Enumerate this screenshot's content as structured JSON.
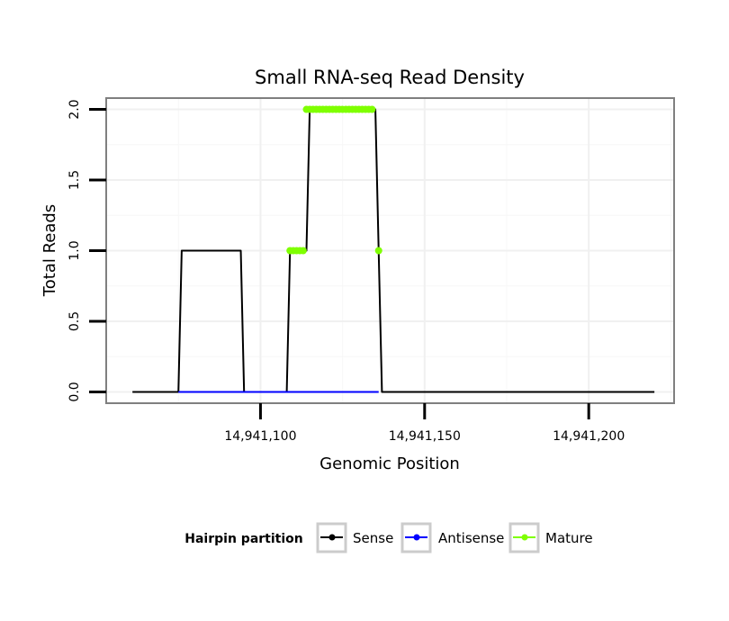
{
  "chart_data": {
    "type": "line",
    "title": "Small RNA-seq Read Density",
    "xlabel": "Genomic Position",
    "ylabel": "Total Reads",
    "xlim": [
      14941053,
      14941226
    ],
    "ylim": [
      -0.08,
      2.08
    ],
    "x_ticks": [
      14941100,
      14941150,
      14941200
    ],
    "x_tick_labels": [
      "14,941,100",
      "14,941,150",
      "14,941,200"
    ],
    "y_ticks": [
      0,
      0.5,
      1,
      1.5,
      2
    ],
    "y_tick_labels": [
      "0.0",
      "0.5",
      "1.0",
      "1.5",
      "2.0"
    ],
    "grid": true,
    "legend": {
      "title": "Hairpin partition",
      "position": "bottom",
      "entries": [
        "Sense",
        "Antisense",
        "Mature"
      ]
    },
    "colors": {
      "Sense": "#000000",
      "Antisense": "#0000ff",
      "Mature": "#7fff00"
    },
    "series": [
      {
        "name": "Sense",
        "x": [
          14941061,
          14941075,
          14941076,
          14941094,
          14941095,
          14941108,
          14941109,
          14941114,
          14941115,
          14941135,
          14941136,
          14941137,
          14941220
        ],
        "y": [
          0,
          0,
          1,
          1,
          0,
          0,
          1,
          1,
          2,
          2,
          1,
          0,
          0
        ]
      },
      {
        "name": "Antisense",
        "x": [
          14941075,
          14941095,
          14941109,
          14941136
        ],
        "y": [
          0,
          0,
          0,
          0
        ]
      },
      {
        "name": "Mature",
        "points": [
          {
            "x": 14941109,
            "y": 1
          },
          {
            "x": 14941110,
            "y": 1
          },
          {
            "x": 14941111,
            "y": 1
          },
          {
            "x": 14941112,
            "y": 1
          },
          {
            "x": 14941113,
            "y": 1
          },
          {
            "x": 14941114,
            "y": 2
          },
          {
            "x": 14941115,
            "y": 2
          },
          {
            "x": 14941116,
            "y": 2
          },
          {
            "x": 14941117,
            "y": 2
          },
          {
            "x": 14941118,
            "y": 2
          },
          {
            "x": 14941119,
            "y": 2
          },
          {
            "x": 14941120,
            "y": 2
          },
          {
            "x": 14941121,
            "y": 2
          },
          {
            "x": 14941122,
            "y": 2
          },
          {
            "x": 14941123,
            "y": 2
          },
          {
            "x": 14941124,
            "y": 2
          },
          {
            "x": 14941125,
            "y": 2
          },
          {
            "x": 14941126,
            "y": 2
          },
          {
            "x": 14941127,
            "y": 2
          },
          {
            "x": 14941128,
            "y": 2
          },
          {
            "x": 14941129,
            "y": 2
          },
          {
            "x": 14941130,
            "y": 2
          },
          {
            "x": 14941131,
            "y": 2
          },
          {
            "x": 14941132,
            "y": 2
          },
          {
            "x": 14941133,
            "y": 2
          },
          {
            "x": 14941134,
            "y": 2
          },
          {
            "x": 14941136,
            "y": 1
          }
        ]
      }
    ]
  }
}
